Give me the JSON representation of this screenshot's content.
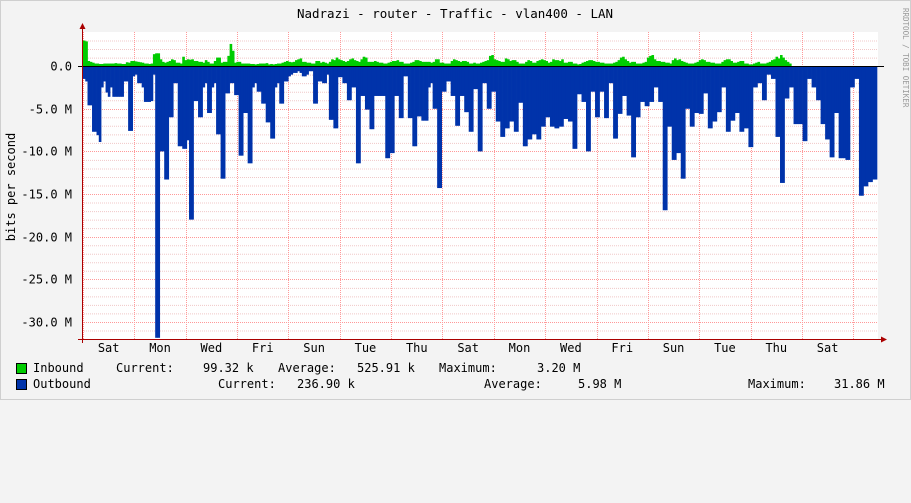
{
  "chart_data": {
    "type": "area",
    "title": "Nadrazi - router - Traffic - vlan400 - LAN",
    "ylabel": "bits per second",
    "watermark": "RRDTOOL / TOBI OETIKER",
    "ylim": [
      -32000000,
      4000000
    ],
    "y_ticks": [
      {
        "value": 0,
        "label": "0.0"
      },
      {
        "value": -5000000,
        "label": "-5.0 M"
      },
      {
        "value": -10000000,
        "label": "-10.0 M"
      },
      {
        "value": -15000000,
        "label": "-15.0 M"
      },
      {
        "value": -20000000,
        "label": "-20.0 M"
      },
      {
        "value": -25000000,
        "label": "-25.0 M"
      },
      {
        "value": -30000000,
        "label": "-30.0 M"
      }
    ],
    "x_labels": [
      "Sat",
      "Mon",
      "Wed",
      "Fri",
      "Sun",
      "Tue",
      "Thu",
      "Sat",
      "Mon",
      "Wed",
      "Fri",
      "Sun",
      "Tue",
      "Thu",
      "Sat"
    ],
    "grid": true,
    "colors": {
      "inbound": "#00cc00",
      "outbound": "#0033aa",
      "grid": "#ff9999",
      "axis": "#aa0000"
    },
    "series": [
      {
        "name": "Inbound",
        "values": [
          3000000,
          2900000,
          600000,
          500000,
          400000,
          300000,
          300000,
          250000,
          250000,
          300000,
          300000,
          300000,
          300000,
          300000,
          350000,
          300000,
          300000,
          250000,
          250000,
          450000,
          400000,
          600000,
          600000,
          550000,
          500000,
          450000,
          400000,
          300000,
          300000,
          250000,
          300000,
          1400000,
          1500000,
          1500000,
          800000,
          500000,
          400000,
          500000,
          600000,
          800000,
          700000,
          400000,
          400000,
          300000,
          1100000,
          700000,
          800000,
          750000,
          800000,
          600000,
          600000,
          500000,
          500000,
          400000,
          700000,
          500000,
          300000,
          300000,
          600000,
          1000000,
          1000000,
          400000,
          500000,
          500000,
          1200000,
          2600000,
          1800000,
          400000,
          500000,
          500000,
          300000,
          300000,
          300000,
          300000,
          250000,
          250000,
          200000,
          250000,
          300000,
          300000,
          300000,
          350000,
          200000,
          250000,
          200000,
          250000,
          300000,
          300000,
          400000,
          500000,
          600000,
          500000,
          450000,
          500000,
          700000,
          800000,
          900000,
          500000,
          500000,
          400000,
          400000,
          300000,
          300000,
          600000,
          600000,
          400000,
          500000,
          400000,
          300000,
          500000,
          800000,
          700000,
          1000000,
          800000,
          700000,
          600000,
          500000,
          600000,
          800000,
          900000,
          700000,
          600000,
          500000,
          800000,
          1100000,
          1000000,
          500000,
          500000,
          500000,
          600000,
          500000,
          400000,
          400000,
          300000,
          300000,
          400000,
          500000,
          600000,
          600000,
          700000,
          500000,
          500000,
          300000,
          300000,
          300000,
          400000,
          500000,
          700000,
          700000,
          600000,
          500000,
          500000,
          500000,
          500000,
          400000,
          500000,
          800000,
          800000,
          400000,
          400000,
          300000,
          300000,
          300000,
          600000,
          800000,
          700000,
          600000,
          500000,
          600000,
          600000,
          500000,
          300000,
          300000,
          400000,
          300000,
          300000,
          400000,
          500000,
          600000,
          700000,
          1200000,
          1300000,
          800000,
          700000,
          600000,
          500000,
          500000,
          900000,
          800000,
          600000,
          700000,
          700000,
          500000,
          300000,
          300000,
          300000,
          500000,
          700000,
          600000,
          400000,
          400000,
          600000,
          700000,
          800000,
          700000,
          600000,
          400000,
          500000,
          800000,
          700000,
          700000,
          600000,
          800000,
          400000,
          400000,
          500000,
          500000,
          300000,
          300000,
          200000,
          250000,
          400000,
          500000,
          600000,
          700000,
          700000,
          600000,
          500000,
          500000,
          400000,
          400000,
          300000,
          300000,
          300000,
          300000,
          400000,
          500000,
          700000,
          1000000,
          1100000,
          800000,
          600000,
          400000,
          500000,
          500000,
          300000,
          300000,
          300000,
          400000,
          500000,
          1000000,
          1200000,
          1300000,
          800000,
          600000,
          600000,
          500000,
          500000,
          400000,
          400000,
          300000,
          700000,
          900000,
          700000,
          800000,
          600000,
          500000,
          400000,
          300000,
          300000,
          300000,
          400000,
          500000,
          700000,
          800000,
          700000,
          500000,
          500000,
          400000,
          400000,
          300000,
          300000,
          300000,
          500000,
          700000,
          800000,
          800000,
          600000,
          400000,
          400000,
          500000,
          600000,
          600000,
          300000,
          300000,
          200000,
          200000,
          300000,
          400000,
          500000,
          300000,
          300000,
          300000,
          400000,
          500000,
          700000,
          800000,
          1100000,
          900000,
          1300000,
          1000000,
          700000,
          500000,
          300000
        ]
      },
      {
        "name": "Outbound",
        "values": [
          -1500000,
          -1800000,
          -4600000,
          -4600000,
          -7700000,
          -7700000,
          -8100000,
          -8900000,
          -2500000,
          -1800000,
          -3100000,
          -3600000,
          -2500000,
          -3600000,
          -3600000,
          -3600000,
          -3600000,
          -3600000,
          -1800000,
          -1800000,
          -7600000,
          -7600000,
          -1200000,
          -1000000,
          -2000000,
          -2000000,
          -2500000,
          -4200000,
          -4200000,
          -4200000,
          -4100000,
          -1000000,
          -31860000,
          -31860000,
          -10000000,
          -10000000,
          -13300000,
          -13300000,
          -6000000,
          -6000000,
          -2000000,
          -2000000,
          -9400000,
          -9400000,
          -9700000,
          -9700000,
          -8700000,
          -18000000,
          -18000000,
          -4100000,
          -4100000,
          -6000000,
          -6000000,
          -2500000,
          -2000000,
          -5500000,
          -5500000,
          -2500000,
          -2000000,
          -8000000,
          -8000000,
          -13200000,
          -13200000,
          -3200000,
          -3200000,
          -2000000,
          -2000000,
          -3400000,
          -3400000,
          -10500000,
          -10500000,
          -5500000,
          -5500000,
          -11400000,
          -11400000,
          -2500000,
          -2000000,
          -3000000,
          -3000000,
          -4400000,
          -4400000,
          -6600000,
          -6600000,
          -8500000,
          -8500000,
          -2500000,
          -2000000,
          -4400000,
          -4400000,
          -1800000,
          -1800000,
          -1200000,
          -1000000,
          -800000,
          -800000,
          -600000,
          -800000,
          -1200000,
          -1200000,
          -1000000,
          -600000,
          -600000,
          -4400000,
          -4400000,
          -1800000,
          -1800000,
          -2000000,
          -2000000,
          -1000000,
          -6300000,
          -6300000,
          -7300000,
          -7300000,
          -1300000,
          -1300000,
          -2000000,
          -2000000,
          -4000000,
          -4000000,
          -2500000,
          -2500000,
          -11400000,
          -11400000,
          -3500000,
          -3500000,
          -5100000,
          -5100000,
          -7400000,
          -7400000,
          -3500000,
          -3500000,
          -3500000,
          -3500000,
          -3500000,
          -10800000,
          -10800000,
          -10200000,
          -10200000,
          -3500000,
          -3500000,
          -6100000,
          -6100000,
          -1200000,
          -1200000,
          -6100000,
          -6100000,
          -9400000,
          -9400000,
          -5900000,
          -5900000,
          -6400000,
          -6400000,
          -6400000,
          -2500000,
          -2000000,
          -5000000,
          -5000000,
          -14300000,
          -14300000,
          -3000000,
          -3000000,
          -1800000,
          -1800000,
          -3500000,
          -3500000,
          -7000000,
          -7000000,
          -3500000,
          -3500000,
          -5400000,
          -5400000,
          -7700000,
          -7700000,
          -2700000,
          -2700000,
          -10000000,
          -10000000,
          -2000000,
          -2000000,
          -5000000,
          -5000000,
          -3000000,
          -3000000,
          -6500000,
          -6500000,
          -8300000,
          -8300000,
          -7300000,
          -7300000,
          -6500000,
          -6500000,
          -7700000,
          -7700000,
          -4300000,
          -4300000,
          -9400000,
          -9400000,
          -8600000,
          -8600000,
          -8000000,
          -8000000,
          -8600000,
          -8600000,
          -7100000,
          -7100000,
          -6000000,
          -6000000,
          -7100000,
          -7100000,
          -7300000,
          -7300000,
          -7100000,
          -7100000,
          -6200000,
          -6200000,
          -6500000,
          -6500000,
          -9700000,
          -9700000,
          -3300000,
          -3300000,
          -4200000,
          -4200000,
          -10000000,
          -10000000,
          -3000000,
          -3000000,
          -6000000,
          -6000000,
          -3000000,
          -3000000,
          -6100000,
          -6100000,
          -2000000,
          -2000000,
          -8500000,
          -8500000,
          -5600000,
          -5600000,
          -3500000,
          -3500000,
          -5800000,
          -5800000,
          -10700000,
          -10700000,
          -6000000,
          -6000000,
          -4200000,
          -4200000,
          -4700000,
          -4700000,
          -4200000,
          -4200000,
          -2500000,
          -2500000,
          -4200000,
          -4200000,
          -16900000,
          -16900000,
          -7100000,
          -7100000,
          -11000000,
          -11000000,
          -10200000,
          -10200000,
          -13200000,
          -13200000,
          -5000000,
          -5000000,
          -7100000,
          -7100000,
          -5500000,
          -5500000,
          -5600000,
          -5600000,
          -3200000,
          -3200000,
          -7300000,
          -7300000,
          -6500000,
          -6500000,
          -5400000,
          -5400000,
          -2500000,
          -2500000,
          -7700000,
          -7700000,
          -6400000,
          -6400000,
          -5500000,
          -5500000,
          -7700000,
          -7700000,
          -7300000,
          -7300000,
          -9500000,
          -9500000,
          -2500000,
          -2500000,
          -2000000,
          -2000000,
          -4000000,
          -4000000,
          -1000000,
          -1000000,
          -1500000,
          -1500000,
          -8300000,
          -8300000,
          -13700000,
          -13700000,
          -3800000,
          -3800000,
          -2500000,
          -2500000,
          -6800000,
          -6800000,
          -6800000,
          -6800000,
          -8800000,
          -8800000,
          -1500000,
          -1500000,
          -2500000,
          -2500000,
          -4000000,
          -4000000,
          -6800000,
          -6800000,
          -8600000,
          -8600000,
          -10700000,
          -10700000,
          -5500000,
          -5500000,
          -10800000,
          -10800000,
          -10800000,
          -11000000,
          -11000000,
          -2500000,
          -2500000,
          -1500000,
          -1500000,
          -15200000,
          -15200000,
          -14100000,
          -14100000,
          -13600000,
          -13600000,
          -13300000,
          -13300000
        ]
      }
    ]
  },
  "legend": [
    {
      "name": "Inbound",
      "current_label": "Current:",
      "current": "99.32 k",
      "average_label": "Average:",
      "average": "525.91 k",
      "maximum_label": "Maximum:",
      "maximum": "3.20 M"
    },
    {
      "name": "Outbound",
      "current_label": "Current:",
      "current": "236.90 k",
      "average_label": "Average:",
      "average": "5.98 M",
      "maximum_label": "Maximum:",
      "maximum": "31.86 M"
    }
  ]
}
